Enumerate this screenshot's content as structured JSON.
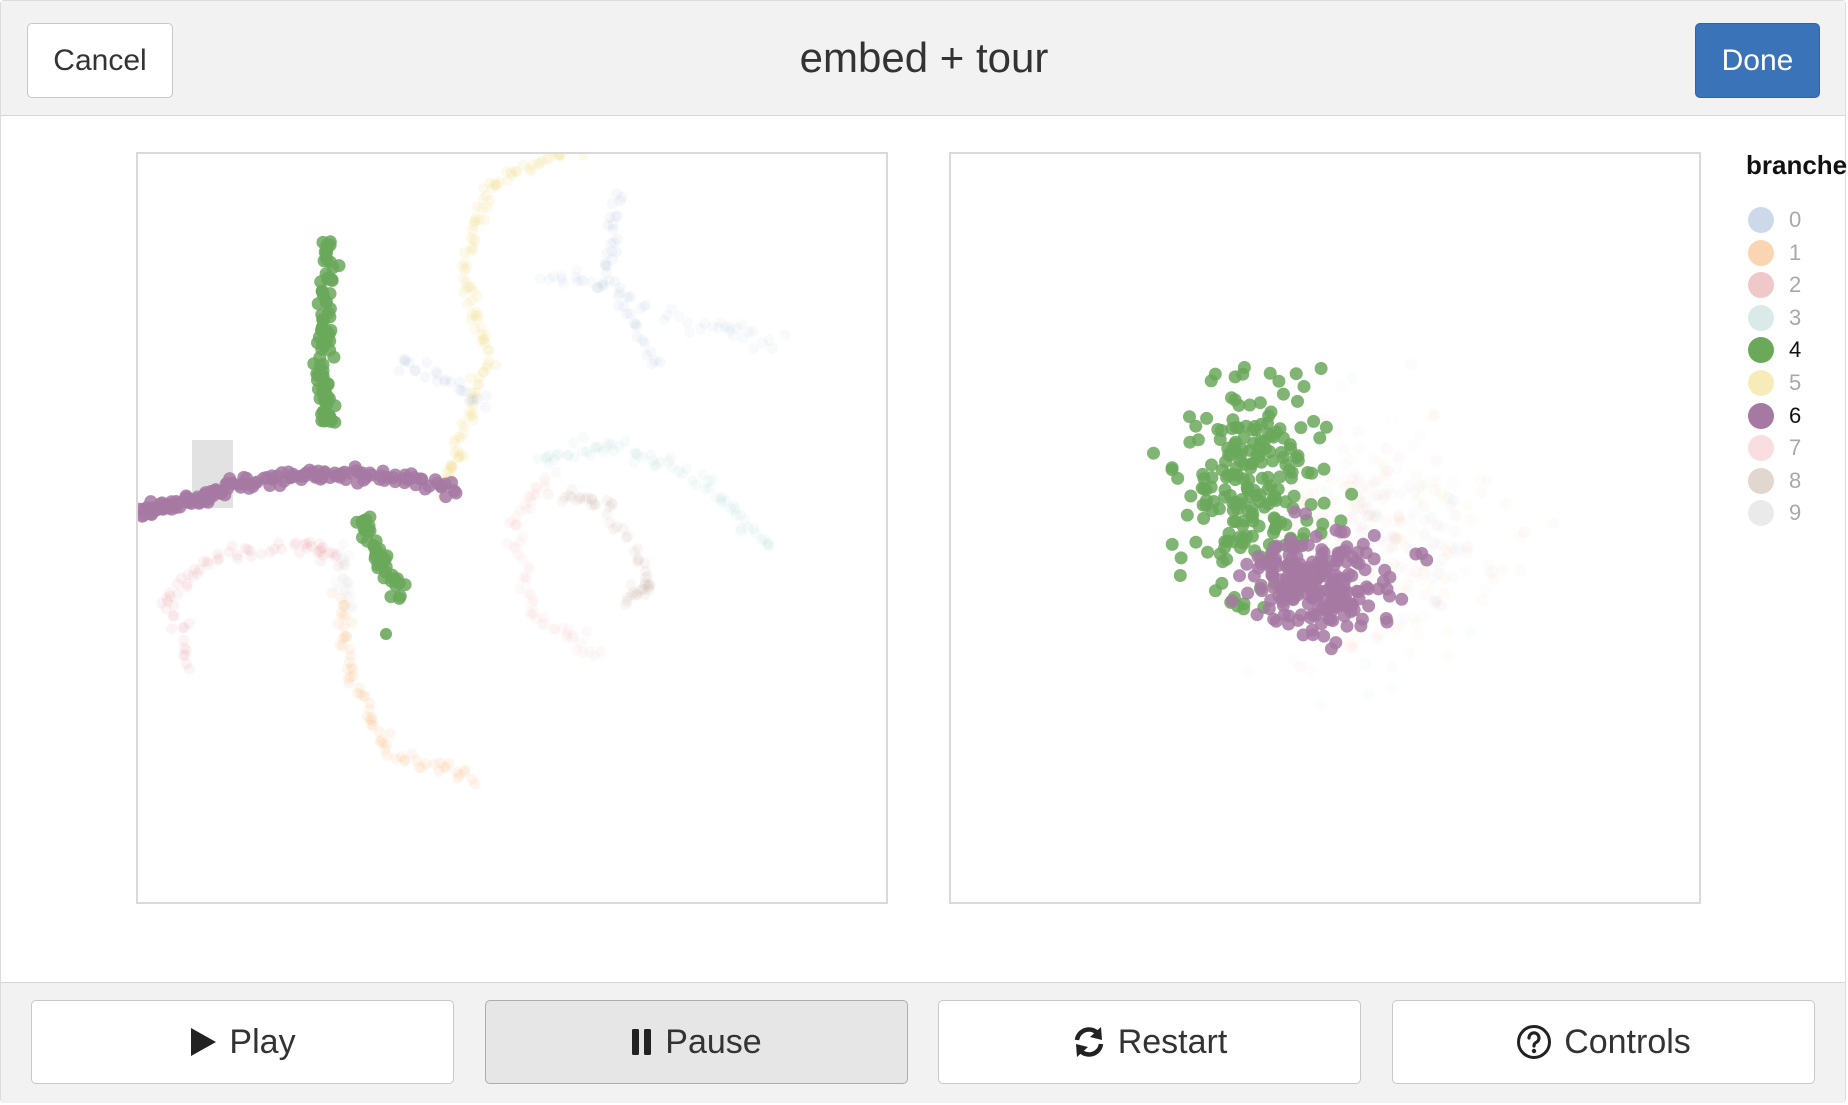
{
  "header": {
    "title": "embed + tour",
    "cancel_label": "Cancel",
    "done_label": "Done"
  },
  "legend": {
    "title": "branches",
    "items": [
      {
        "label": "0",
        "color": "#a8bfdc",
        "active": false
      },
      {
        "label": "1",
        "color": "#f6b97f",
        "active": false
      },
      {
        "label": "2",
        "color": "#e8a3a7",
        "active": false
      },
      {
        "label": "3",
        "color": "#bfdcdb",
        "active": false
      },
      {
        "label": "4",
        "color": "#6aa85a",
        "active": true
      },
      {
        "label": "5",
        "color": "#f2dd8c",
        "active": false
      },
      {
        "label": "6",
        "color": "#a679a3",
        "active": true
      },
      {
        "label": "7",
        "color": "#f7c6cc",
        "active": false
      },
      {
        "label": "8",
        "color": "#cfbcae",
        "active": false
      },
      {
        "label": "9",
        "color": "#dcdcdc",
        "active": false
      }
    ]
  },
  "footer": {
    "play_label": "Play",
    "pause_label": "Pause",
    "restart_label": "Restart",
    "controls_label": "Controls"
  },
  "icons": {
    "play": "play-icon",
    "pause": "pause-icon",
    "restart": "refresh-icon",
    "controls": "question-circle-icon"
  },
  "colors": {
    "done_button": "#3b73b9",
    "header_bg": "#f2f2f2",
    "highlight_green": "#6aa85a",
    "highlight_purple": "#a679a3"
  }
}
